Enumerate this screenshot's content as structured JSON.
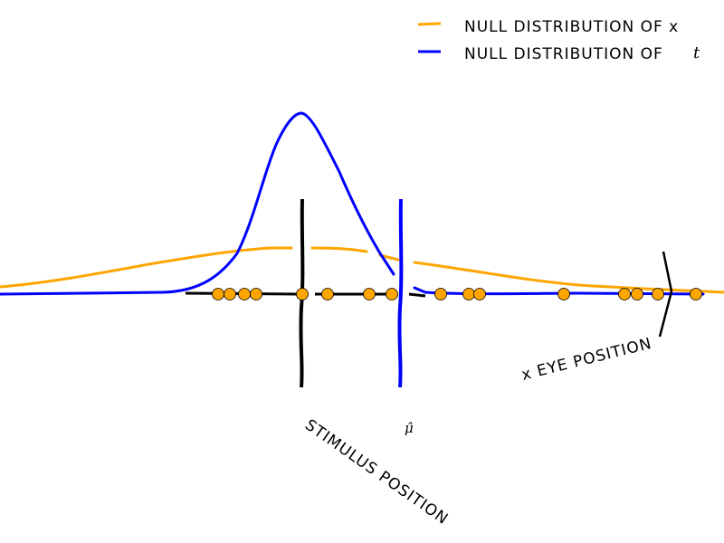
{
  "legend": {
    "items": [
      {
        "label": "NULL DISTRIBUTION OF x",
        "color": "#FFA500"
      },
      {
        "label": "NULL DISTRIBUTION OF",
        "math": "t",
        "color": "#0000FF"
      }
    ]
  },
  "annotations": {
    "stimulus_label": "STIMULUS POSITION",
    "mu_hat_label": "μ̂",
    "eye_label": "x EYE POSITION"
  },
  "colors": {
    "x_distribution": "#FFA500",
    "t_distribution": "#0000FF",
    "stimulus_line": "#000000",
    "mu_hat_line": "#0000FF",
    "samples": "#FFA500"
  }
}
